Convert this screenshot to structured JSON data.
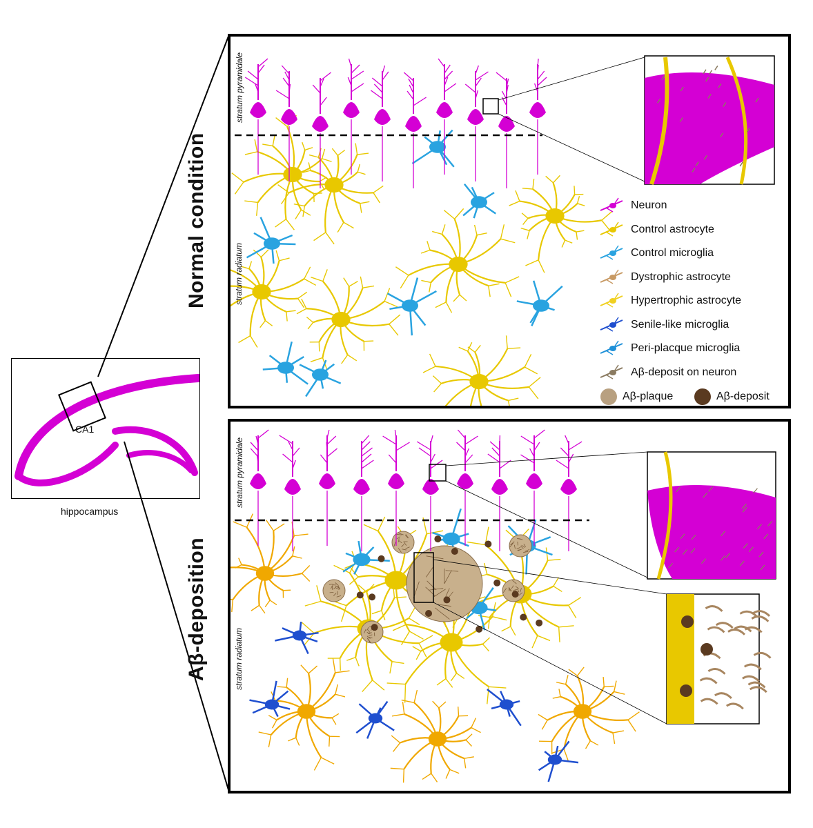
{
  "hippocampus": {
    "label": "hippocampus",
    "region_label": "CA1"
  },
  "panels": {
    "top": {
      "title": "Normal condition",
      "layer_upper": "stratum pyramidale",
      "layer_lower": "stratum radiatum"
    },
    "bottom": {
      "title": "Aβ-deposition",
      "layer_upper": "stratum pyramidale",
      "layer_lower": "stratum radiatum"
    }
  },
  "legend": {
    "items": [
      {
        "label": "Neuron",
        "icon": "neuron-icon",
        "color": "#d400d4"
      },
      {
        "label": "Control astrocyte",
        "icon": "control-astrocyte-icon",
        "color": "#e8c800"
      },
      {
        "label": "Control microglia",
        "icon": "control-microglia-icon",
        "color": "#29a3e0"
      },
      {
        "label": "Dystrophic astrocyte",
        "icon": "dystrophic-astrocyte-icon",
        "color": "#c89a64"
      },
      {
        "label": "Hypertrophic astrocyte",
        "icon": "hypertrophic-astrocyte-icon",
        "color": "#f0d020"
      },
      {
        "label": "Senile-like microglia",
        "icon": "senile-microglia-icon",
        "color": "#1f4fcf"
      },
      {
        "label": "Peri-placque microglia",
        "icon": "peri-plaque-microglia-icon",
        "color": "#1e90d8"
      },
      {
        "label": "Aβ-deposit on neuron",
        "icon": "abeta-deposit-on-neuron-icon",
        "color": "#8a7a60"
      }
    ],
    "bottom_row": [
      {
        "label": "Aβ-plaque",
        "icon": "abeta-plaque-icon",
        "color": "#b8a080"
      },
      {
        "label": "Aβ-deposit",
        "icon": "abeta-deposit-icon",
        "color": "#5a3a20"
      }
    ]
  },
  "colors": {
    "neuron": "#d400d4",
    "astrocyte": "#e8c800",
    "microglia": "#29a3e0",
    "senile_microglia": "#1f4fcf",
    "dystrophic_astrocyte": "#f0a800",
    "plaque": "#b49a78",
    "deposit": "#5a3a20"
  }
}
